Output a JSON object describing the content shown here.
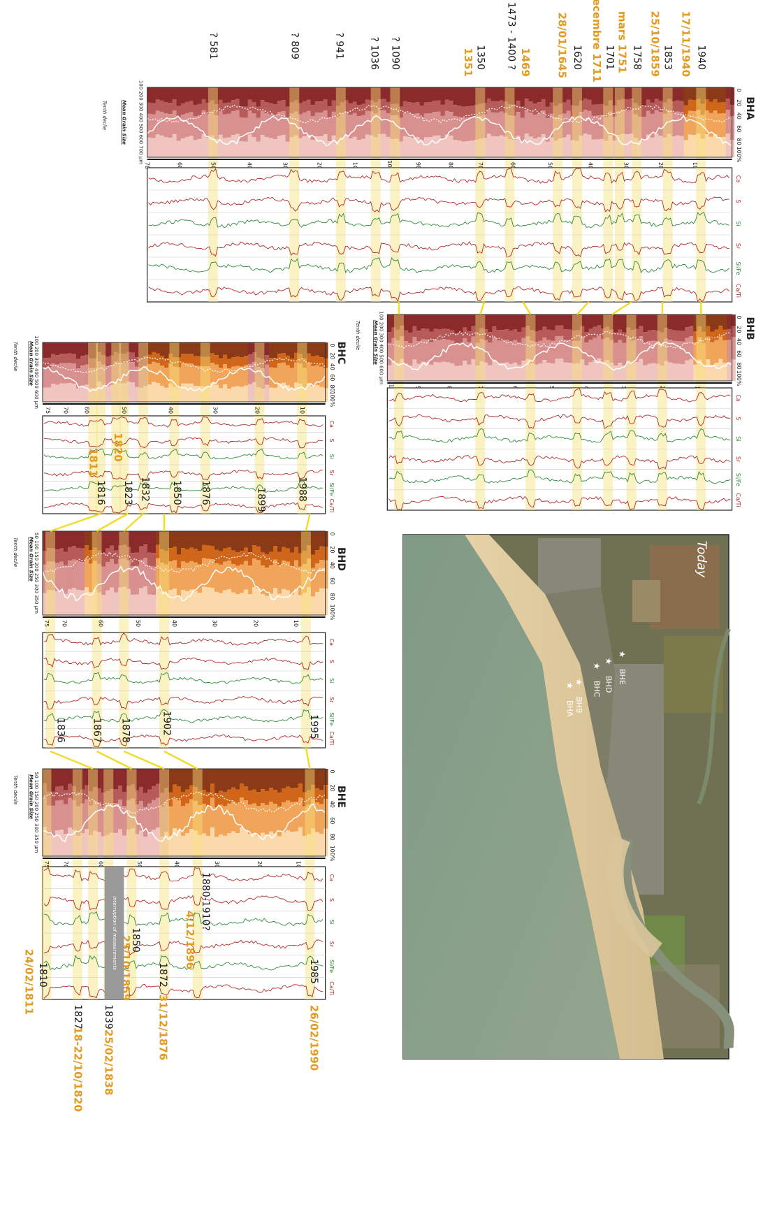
{
  "cores": [
    {
      "name": "BHA",
      "percent_axis": [
        "0",
        "20",
        "40",
        "60",
        "80",
        "100%"
      ],
      "depth_ticks": [
        "10",
        "20",
        "30",
        "40",
        "50",
        "60",
        "70",
        "80",
        "90",
        "100",
        "10",
        "20",
        "30",
        "40",
        "50",
        "60",
        "70"
      ],
      "grain_axis": "100 200 300 400 500 600 700 µm",
      "legend": [
        "Mean Grain Size",
        "Tenth decile"
      ],
      "elements": [
        "Ca",
        "S",
        "Si",
        "Sr",
        "Si/Fe",
        "Ca/Ti"
      ],
      "dates": [
        {
          "text": "1940",
          "color": "#1a1a1a"
        },
        {
          "text": "17/11/1940",
          "color": "#e39a1f"
        },
        {
          "text": "1853",
          "color": "#1a1a1a"
        },
        {
          "text": "25/10/1859",
          "color": "#e39a1f"
        },
        {
          "text": "1758",
          "color": "#1a1a1a"
        },
        {
          "text": "mars 1751",
          "color": "#e39a1f"
        },
        {
          "text": "1701",
          "color": "#1a1a1a"
        },
        {
          "text": "decembre 1711",
          "color": "#e39a1f"
        },
        {
          "text": "1620",
          "color": "#1a1a1a"
        },
        {
          "text": "28/01/1645",
          "color": "#e39a1f"
        },
        {
          "text": "1469",
          "color": "#e39a1f"
        },
        {
          "text": "1473 - 1400 ?",
          "color": "#1a1a1a"
        },
        {
          "text": "1350",
          "color": "#1a1a1a"
        },
        {
          "text": "1351",
          "color": "#e39a1f"
        },
        {
          "text": "? 1090",
          "color": "#1a1a1a"
        },
        {
          "text": "? 1036",
          "color": "#1a1a1a"
        },
        {
          "text": "? 941",
          "color": "#1a1a1a"
        },
        {
          "text": "? 809",
          "color": "#1a1a1a"
        },
        {
          "text": "? 581",
          "color": "#1a1a1a"
        }
      ]
    },
    {
      "name": "BHB",
      "percent_axis": [
        "0",
        "20",
        "40",
        "60",
        "80",
        "100%"
      ],
      "depth_ticks": [
        "10",
        "20",
        "30",
        "40",
        "50",
        "60",
        "70",
        "80",
        "90",
        "100"
      ],
      "grain_axis": "100 200 300 400 500 600 µm",
      "legend": [
        "Mean Grain Size",
        "Tenth decile"
      ],
      "elements": [
        "Ca",
        "S",
        "Si",
        "Sr",
        "Si/Fe",
        "Ca/Ti"
      ],
      "dates": []
    },
    {
      "name": "BHC",
      "percent_axis": [
        "0",
        "20",
        "40",
        "60",
        "80",
        "100%"
      ],
      "depth_ticks": [
        "10",
        "20",
        "30",
        "40",
        "50",
        "60",
        "70",
        "75"
      ],
      "grain_axis": "100 200 300 400 500 600 µm",
      "legend": [
        "Mean Grain Size",
        "Tenth decile"
      ],
      "elements": [
        "Ca",
        "S",
        "Si",
        "Sr",
        "Si/Fe",
        "Ca/Ti"
      ],
      "dates": [
        {
          "text": "1988",
          "color": "#1a1a1a"
        },
        {
          "text": "1899",
          "color": "#1a1a1a"
        },
        {
          "text": "1876",
          "color": "#1a1a1a"
        },
        {
          "text": "1850",
          "color": "#1a1a1a"
        },
        {
          "text": "1832",
          "color": "#1a1a1a"
        },
        {
          "text": "1823",
          "color": "#1a1a1a"
        },
        {
          "text": "1820",
          "color": "#e39a1f"
        },
        {
          "text": "1816",
          "color": "#1a1a1a"
        },
        {
          "text": "1811",
          "color": "#e39a1f"
        }
      ]
    },
    {
      "name": "BHD",
      "percent_axis": [
        "0",
        "20",
        "40",
        "60",
        "80",
        "100%"
      ],
      "depth_ticks": [
        "10",
        "20",
        "30",
        "40",
        "50",
        "60",
        "70",
        "75"
      ],
      "grain_axis": "50 100 150 200 250 300 350 µm",
      "legend": [
        "Mean Grain Size",
        "Tenth decile"
      ],
      "elements": [
        "Ca",
        "S",
        "Si",
        "Sr",
        "Si/Fe",
        "Ca/Ti"
      ],
      "dates": [
        {
          "text": "1995",
          "color": "#1a1a1a"
        },
        {
          "text": "1902",
          "color": "#1a1a1a"
        },
        {
          "text": "1878",
          "color": "#1a1a1a"
        },
        {
          "text": "1867",
          "color": "#1a1a1a"
        },
        {
          "text": "1836",
          "color": "#1a1a1a"
        }
      ]
    },
    {
      "name": "BHE",
      "percent_axis": [
        "0",
        "20",
        "40",
        "60",
        "80",
        "100%"
      ],
      "depth_ticks": [
        "10",
        "20",
        "30",
        "40",
        "50",
        "60",
        "70",
        "75"
      ],
      "grain_axis": "50 100 150 200 250 300 350 µm",
      "legend": [
        "Mean Grain Size",
        "Tenth decile"
      ],
      "elements": [
        "Ca",
        "S",
        "Si",
        "Sr",
        "Si/Fe",
        "Ca/Ti"
      ],
      "dates": [
        {
          "text": "1985",
          "color": "#1a1a1a"
        },
        {
          "text": "26/02/1990",
          "color": "#e39a1f"
        },
        {
          "text": "1880-1910?",
          "color": "#1a1a1a"
        },
        {
          "text": "4/12/1896",
          "color": "#e39a1f"
        },
        {
          "text": "1872",
          "color": "#1a1a1a"
        },
        {
          "text": "31/12/1876",
          "color": "#e39a1f"
        },
        {
          "text": "1850",
          "color": "#1a1a1a"
        },
        {
          "text": "25/10/1859",
          "color": "#e39a1f"
        },
        {
          "text": "1839",
          "color": "#1a1a1a"
        },
        {
          "text": "25/02/1838",
          "color": "#e39a1f"
        },
        {
          "text": "1827",
          "color": "#1a1a1a"
        },
        {
          "text": "18-22/10/1820",
          "color": "#e39a1f"
        },
        {
          "text": "1810",
          "color": "#1a1a1a"
        },
        {
          "text": "24/02/1811",
          "color": "#e39a1f"
        }
      ]
    }
  ],
  "interruption": "Interruption of measurements",
  "map": {
    "title": "Today",
    "sites": [
      "BHE",
      "BHD",
      "BHC",
      "BHB",
      "BHA"
    ]
  }
}
